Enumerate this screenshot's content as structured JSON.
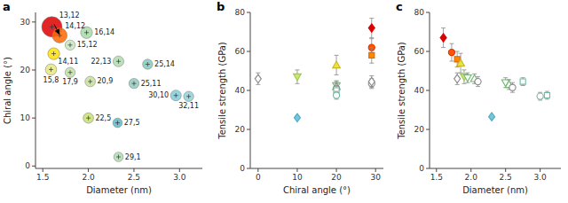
{
  "chart_data": [
    {
      "type": "bubble",
      "title": "a",
      "xlabel": "Diameter (nm)",
      "ylabel": "Chiral angle (°)",
      "x": [
        1.6,
        1.685,
        1.98,
        1.8,
        1.62,
        2.33,
        2.65,
        1.8,
        1.59,
        2.02,
        2.5,
        2.96,
        3.1,
        2.0,
        2.32,
        2.33
      ],
      "values": [
        29.0,
        27.2,
        27.8,
        25.2,
        23.4,
        21.8,
        21.2,
        19.5,
        20.1,
        17.6,
        17.2,
        14.7,
        14.5,
        10.0,
        9.0,
        1.9
      ],
      "sizes": [
        650,
        350,
        220,
        160,
        220,
        180,
        160,
        160,
        200,
        170,
        160,
        180,
        160,
        170,
        140,
        140
      ],
      "colors": [
        "#dd0000",
        "#ff6600",
        "#a8dba8",
        "#c8e8c0",
        "#ffe000",
        "#b0ddb0",
        "#80ccc0",
        "#c0e0a8",
        "#e8e880",
        "#c8e0a0",
        "#90ccc0",
        "#80ccd8",
        "#90d4d8",
        "#c8e070",
        "#60b8c8",
        "#b0ddb0"
      ],
      "annotations": [
        "13,12",
        "14,12",
        "16,14",
        "15,12",
        "14,11",
        "22,13",
        "25,14",
        "17,9",
        "15,8",
        "20,9",
        "25,11",
        "30,10",
        "32,11",
        "22,5",
        "27,5",
        "29,1"
      ],
      "arrow_from": [
        1.625,
        29.5
      ],
      "arrow_to": [
        1.68,
        27.5
      ],
      "xlim": [
        1.42,
        3.25
      ],
      "ylim": [
        -0.5,
        32
      ],
      "xticks": [
        1.5,
        {
          "value": 2,
          "label": "2.0"
        },
        2.5,
        {
          "value": 3,
          "label": "3.0"
        }
      ],
      "yticks": [
        0,
        10,
        20,
        30
      ],
      "grid": false
    },
    {
      "type": "scatter",
      "title": "b",
      "xlabel": "Chiral angle (°)",
      "ylabel": "Tensile strength (GPa)",
      "x": [
        0,
        10,
        10,
        20,
        20,
        20,
        20,
        20,
        20,
        29,
        29,
        29,
        29,
        29
      ],
      "values": [
        46.0,
        26.0,
        47.0,
        53.0,
        42.5,
        42.0,
        41.0,
        40.0,
        37.5,
        72.0,
        62.0,
        58.0,
        43.5,
        44.5
      ],
      "errors": [
        3.0,
        0,
        3.5,
        5.0,
        2.5,
        2.5,
        2.5,
        2.0,
        2.0,
        5.0,
        4.5,
        4.0,
        2.5,
        3.0
      ],
      "markers": [
        "diamond",
        "diamond",
        "triangle-down",
        "triangle-up",
        "triangle-down",
        "triangle-up",
        "circle",
        "square",
        "circle",
        "diamond",
        "circle",
        "square",
        "circle",
        "diamond"
      ],
      "colors": [
        "#ffffff",
        "#70c8e0",
        "#c8e870",
        "#f0e040",
        "#ffffff",
        "#ffffff",
        "#ffffff",
        "#ffffff",
        "#ffffff",
        "#dd0000",
        "#ff5500",
        "#ff8800",
        "#ffffff",
        "#ffffff"
      ],
      "edge_colors": [
        "#888888",
        "#50a8c0",
        "#a0c850",
        "#c8b820",
        "#70b870",
        "#70b870",
        "#888888",
        "#70b8a0",
        "#70b8a0",
        "#dd0000",
        "#dd3300",
        "#dd6600",
        "#888888",
        "#888888"
      ],
      "xlim": [
        -2,
        32
      ],
      "ylim": [
        0,
        80
      ],
      "xticks": [
        0,
        10,
        20,
        30
      ],
      "yticks": [
        0,
        20,
        40,
        60,
        80
      ],
      "grid": false
    },
    {
      "type": "scatter",
      "title": "c",
      "xlabel": "Diameter (nm)",
      "ylabel": "Tensile strength (GPa)",
      "x": [
        1.6,
        1.72,
        1.8,
        1.85,
        1.9,
        1.8,
        1.95,
        2.05,
        2.1,
        2.3,
        2.5,
        2.55,
        2.6,
        2.75,
        3.0,
        3.1
      ],
      "values": [
        67.0,
        59.5,
        56.0,
        54.0,
        47.0,
        46.0,
        46.5,
        46.0,
        44.5,
        26.5,
        44.0,
        43.0,
        41.5,
        44.5,
        37.0,
        37.5
      ],
      "errors": [
        5.0,
        4.5,
        4.0,
        5.0,
        3.5,
        3.0,
        2.5,
        2.5,
        2.5,
        0,
        2.5,
        2.5,
        2.5,
        2.0,
        2.0,
        2.0
      ],
      "markers": [
        "diamond",
        "circle",
        "square",
        "triangle-up",
        "triangle-down",
        "diamond",
        "triangle-down",
        "triangle-up",
        "circle",
        "diamond",
        "triangle-down",
        "triangle-up",
        "circle",
        "square",
        "circle",
        "square"
      ],
      "colors": [
        "#dd0000",
        "#ff5500",
        "#ff8800",
        "#f0e040",
        "#c8e870",
        "#ffffff",
        "#ffffff",
        "#ffffff",
        "#ffffff",
        "#70c8e0",
        "#ffffff",
        "#ffffff",
        "#ffffff",
        "#ffffff",
        "#ffffff",
        "#ffffff"
      ],
      "edge_colors": [
        "#dd0000",
        "#dd3300",
        "#dd6600",
        "#c8b820",
        "#a0c850",
        "#888888",
        "#70b870",
        "#70b870",
        "#888888",
        "#50a8c0",
        "#70b870",
        "#70b870",
        "#888888",
        "#70b8a0",
        "#70b8a0",
        "#70b8a0"
      ],
      "xlim": [
        1.4,
        3.3
      ],
      "ylim": [
        0,
        80
      ],
      "xticks": [
        1.5,
        {
          "value": 2,
          "label": "2.0"
        },
        2.5,
        {
          "value": 3,
          "label": "3.0"
        }
      ],
      "yticks": [
        0,
        20,
        40,
        60,
        80
      ],
      "grid": false
    }
  ]
}
